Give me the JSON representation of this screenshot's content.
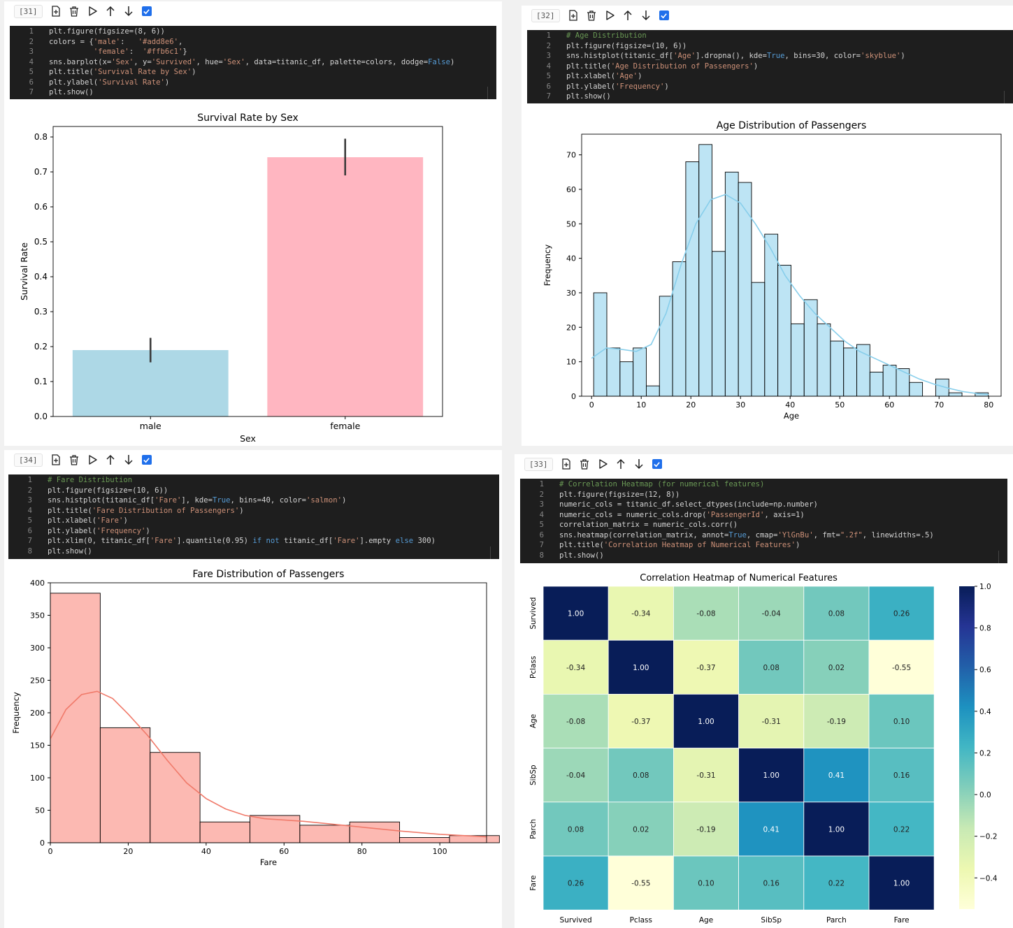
{
  "cells": [
    {
      "id": "cell-31",
      "exec_count": "[31]",
      "code": [
        [
          [
            "plt.figure(figsize=(8, 6))",
            "p"
          ]
        ],
        [
          [
            "colors = {",
            "p"
          ],
          [
            "'male'",
            "s"
          ],
          [
            ":   ",
            "p"
          ],
          [
            "'#add8e6'",
            "s"
          ],
          [
            ",",
            "p"
          ]
        ],
        [
          [
            "          ",
            "p"
          ],
          [
            "'female'",
            "s"
          ],
          [
            ":  ",
            "p"
          ],
          [
            "'#ffb6c1'",
            "s"
          ],
          [
            "}",
            "p"
          ]
        ],
        [
          [
            "sns.barplot(x=",
            "p"
          ],
          [
            "'Sex'",
            "s"
          ],
          [
            ", y=",
            "p"
          ],
          [
            "'Survived'",
            "s"
          ],
          [
            ", hue=",
            "p"
          ],
          [
            "'Sex'",
            "s"
          ],
          [
            ", data=titanic_df, palette=colors, dodge=",
            "p"
          ],
          [
            "False",
            "kw"
          ],
          [
            ")",
            "p"
          ]
        ],
        [
          [
            "plt.title(",
            "p"
          ],
          [
            "'Survival Rate by Sex'",
            "s"
          ],
          [
            ")",
            "p"
          ]
        ],
        [
          [
            "plt.ylabel(",
            "p"
          ],
          [
            "'Survival Rate'",
            "s"
          ],
          [
            ")",
            "p"
          ]
        ],
        [
          [
            "plt.show()",
            "p"
          ]
        ]
      ]
    },
    {
      "id": "cell-32",
      "exec_count": "[32]",
      "code": [
        [
          [
            "# Age Distribution",
            "cm"
          ]
        ],
        [
          [
            "plt.figure(figsize=(10, 6))",
            "p"
          ]
        ],
        [
          [
            "sns.histplot(titanic_df[",
            "p"
          ],
          [
            "'Age'",
            "s"
          ],
          [
            "].dropna(), kde=",
            "p"
          ],
          [
            "True",
            "kw"
          ],
          [
            ", bins=30, color=",
            "p"
          ],
          [
            "'skyblue'",
            "s"
          ],
          [
            ")",
            "p"
          ]
        ],
        [
          [
            "plt.title(",
            "p"
          ],
          [
            "'Age Distribution of Passengers'",
            "s"
          ],
          [
            ")",
            "p"
          ]
        ],
        [
          [
            "plt.xlabel(",
            "p"
          ],
          [
            "'Age'",
            "s"
          ],
          [
            ")",
            "p"
          ]
        ],
        [
          [
            "plt.ylabel(",
            "p"
          ],
          [
            "'Frequency'",
            "s"
          ],
          [
            ")",
            "p"
          ]
        ],
        [
          [
            "plt.show()",
            "p"
          ]
        ]
      ]
    },
    {
      "id": "cell-34",
      "exec_count": "[34]",
      "code": [
        [
          [
            "# Fare Distribution",
            "cm"
          ]
        ],
        [
          [
            "plt.figure(figsize=(10, 6))",
            "p"
          ]
        ],
        [
          [
            "sns.histplot(titanic_df[",
            "p"
          ],
          [
            "'Fare'",
            "s"
          ],
          [
            "], kde=",
            "p"
          ],
          [
            "True",
            "kw"
          ],
          [
            ", bins=40, color=",
            "p"
          ],
          [
            "'salmon'",
            "s"
          ],
          [
            ")",
            "p"
          ]
        ],
        [
          [
            "plt.title(",
            "p"
          ],
          [
            "'Fare Distribution of Passengers'",
            "s"
          ],
          [
            ")",
            "p"
          ]
        ],
        [
          [
            "plt.xlabel(",
            "p"
          ],
          [
            "'Fare'",
            "s"
          ],
          [
            ")",
            "p"
          ]
        ],
        [
          [
            "plt.ylabel(",
            "p"
          ],
          [
            "'Frequency'",
            "s"
          ],
          [
            ")",
            "p"
          ]
        ],
        [
          [
            "plt.xlim(0, titanic_df[",
            "p"
          ],
          [
            "'Fare'",
            "s"
          ],
          [
            "].quantile(0.95) ",
            "p"
          ],
          [
            "if not",
            "kw"
          ],
          [
            " titanic_df[",
            "p"
          ],
          [
            "'Fare'",
            "s"
          ],
          [
            "].empty ",
            "p"
          ],
          [
            "else",
            "kw"
          ],
          [
            " 300)",
            "p"
          ]
        ],
        [
          [
            "plt.show()",
            "p"
          ]
        ]
      ]
    },
    {
      "id": "cell-33",
      "exec_count": "[33]",
      "code": [
        [
          [
            "# Correlation Heatmap (for numerical features)",
            "cm"
          ]
        ],
        [
          [
            "plt.figure(figsize=(12, 8))",
            "p"
          ]
        ],
        [
          [
            "numeric_cols = titanic_df.select_dtypes(include=np.number)",
            "p"
          ]
        ],
        [
          [
            "numeric_cols = numeric_cols.drop(",
            "p"
          ],
          [
            "'PassengerId'",
            "s"
          ],
          [
            ", axis=1)",
            "p"
          ]
        ],
        [
          [
            "correlation_matrix = numeric_cols.corr()",
            "p"
          ]
        ],
        [
          [
            "sns.heatmap(correlation_matrix, annot=",
            "p"
          ],
          [
            "True",
            "kw"
          ],
          [
            ", cmap=",
            "p"
          ],
          [
            "'YlGnBu'",
            "s"
          ],
          [
            ", fmt=",
            "p"
          ],
          [
            "\".2f\"",
            "s"
          ],
          [
            ", linewidths=.5)",
            "p"
          ]
        ],
        [
          [
            "plt.title(",
            "p"
          ],
          [
            "'Correlation Heatmap of Numerical Features'",
            "s"
          ],
          [
            ")",
            "p"
          ]
        ],
        [
          [
            "plt.show()",
            "p"
          ]
        ]
      ]
    }
  ],
  "toolbar_icons": [
    "add-cell-icon",
    "delete-icon",
    "run-icon",
    "move-up-icon",
    "move-down-icon",
    "checkbox-icon"
  ],
  "chart_data": [
    {
      "type": "bar",
      "title": "Survival Rate by Sex",
      "xlabel": "Sex",
      "ylabel": "Survival Rate",
      "categories": [
        "male",
        "female"
      ],
      "values": [
        0.19,
        0.742
      ],
      "error": [
        [
          0.155,
          0.225
        ],
        [
          0.69,
          0.795
        ]
      ],
      "colors": [
        "#add8e6",
        "#ffb6c1"
      ],
      "ylim": [
        0,
        0.83
      ],
      "yticks": [
        "0.0",
        "0.1",
        "0.2",
        "0.3",
        "0.4",
        "0.5",
        "0.6",
        "0.7",
        "0.8"
      ]
    },
    {
      "type": "bar",
      "title": "Age Distribution of Passengers",
      "xlabel": "Age",
      "ylabel": "Frequency",
      "bin_start": 0.42,
      "bin_width": 2.65,
      "values": [
        30,
        14,
        10,
        14,
        3,
        29,
        39,
        68,
        73,
        42,
        65,
        62,
        33,
        47,
        38,
        21,
        28,
        21,
        16,
        14,
        15,
        7,
        9,
        8,
        4,
        0,
        5,
        1,
        0,
        1
      ],
      "kde_x": [
        0,
        3,
        6,
        9,
        12,
        15,
        18,
        21,
        24,
        27,
        30,
        33,
        36,
        39,
        42,
        45,
        48,
        51,
        54,
        57,
        60,
        63,
        66,
        69,
        72,
        75,
        78,
        80
      ],
      "kde_y": [
        11,
        14,
        13.6,
        13,
        15,
        24,
        38,
        50,
        57,
        58.5,
        56,
        50,
        43,
        35,
        29,
        24,
        20,
        16,
        13,
        11,
        9,
        7,
        5,
        3.5,
        2.3,
        1.3,
        0.7,
        0.5
      ],
      "color": "#87ceeb",
      "xlim": [
        -2,
        82.5
      ],
      "ylim": [
        0,
        76
      ],
      "xticks": [
        "0",
        "10",
        "20",
        "30",
        "40",
        "50",
        "60",
        "70",
        "80"
      ],
      "yticks": [
        "0",
        "10",
        "20",
        "30",
        "40",
        "50",
        "60",
        "70"
      ]
    },
    {
      "type": "bar",
      "title": "Fare Distribution of Passengers",
      "xlabel": "Fare",
      "ylabel": "Frequency",
      "bin_start": 0,
      "bin_width": 12.81,
      "values": [
        384,
        177,
        139,
        32,
        42,
        27,
        32,
        8,
        11
      ],
      "kde_x": [
        0,
        4,
        8,
        12,
        16,
        20,
        25,
        30,
        35,
        40,
        45,
        50,
        55,
        60,
        65,
        70,
        80,
        90,
        100,
        112
      ],
      "kde_y": [
        160,
        205,
        228,
        233,
        222,
        198,
        165,
        127,
        92,
        68,
        52,
        42,
        37,
        35,
        33,
        30,
        24,
        18,
        13,
        9
      ],
      "color": "#fa8072",
      "xlim": [
        0,
        112
      ],
      "ylim": [
        0,
        400
      ],
      "xticks": [
        "0",
        "20",
        "40",
        "60",
        "80",
        "100"
      ],
      "yticks": [
        "0",
        "50",
        "100",
        "150",
        "200",
        "250",
        "300",
        "350",
        "400"
      ]
    },
    {
      "type": "heatmap",
      "title": "Correlation Heatmap of Numerical Features",
      "labels": [
        "Survived",
        "Pclass",
        "Age",
        "SibSp",
        "Parch",
        "Fare"
      ],
      "matrix": [
        [
          1.0,
          -0.34,
          -0.08,
          -0.04,
          0.08,
          0.26
        ],
        [
          -0.34,
          1.0,
          -0.37,
          0.08,
          0.02,
          -0.55
        ],
        [
          -0.08,
          -0.37,
          1.0,
          -0.31,
          -0.19,
          0.1
        ],
        [
          -0.04,
          0.08,
          -0.31,
          1.0,
          0.41,
          0.16
        ],
        [
          0.08,
          0.02,
          -0.19,
          0.41,
          1.0,
          0.22
        ],
        [
          0.26,
          -0.55,
          0.1,
          0.16,
          0.22,
          1.0
        ]
      ],
      "colorbar_range": [
        -0.55,
        1.0
      ],
      "colorbar_ticks": [
        1.0,
        0.8,
        0.6,
        0.4,
        0.2,
        0.0,
        -0.2,
        -0.4
      ],
      "colorbar_labels": [
        "1.0",
        "0.8",
        "0.6",
        "0.4",
        "0.2",
        "0.0",
        "−0.2",
        "−0.4"
      ]
    }
  ]
}
